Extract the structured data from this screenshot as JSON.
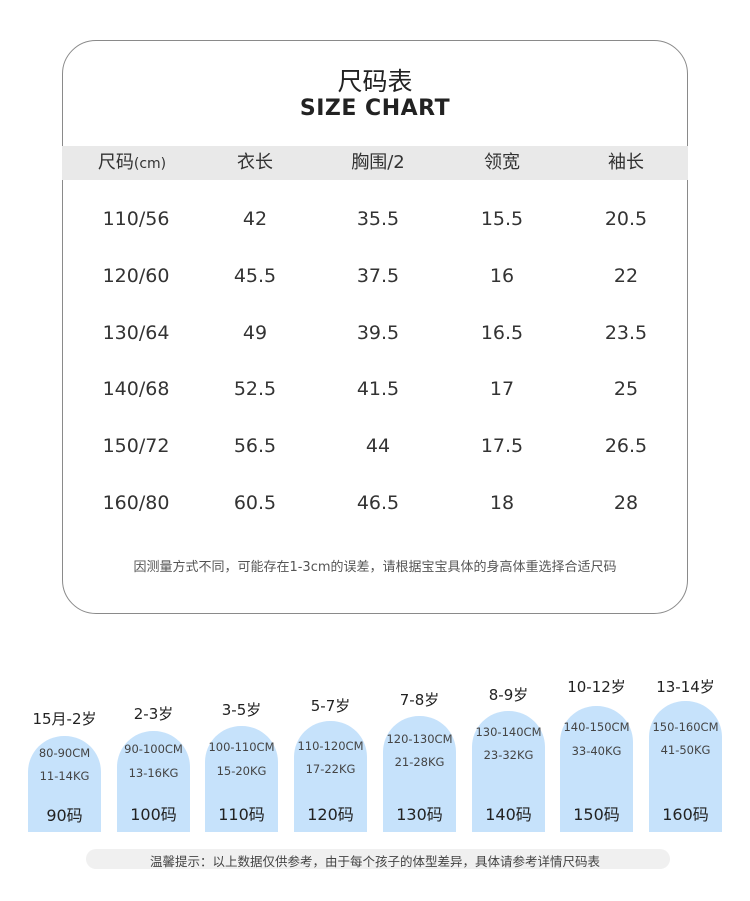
{
  "title": {
    "cn": "尺码表",
    "en": "SIZE CHART"
  },
  "table": {
    "headers": [
      "尺码",
      "衣长",
      "胸围/2",
      "领宽",
      "袖长"
    ],
    "size_unit": "(cm)",
    "rows": [
      [
        "110/56",
        "42",
        "35.5",
        "15.5",
        "20.5"
      ],
      [
        "120/60",
        "45.5",
        "37.5",
        "16",
        "22"
      ],
      [
        "130/64",
        "49",
        "39.5",
        "16.5",
        "23.5"
      ],
      [
        "140/68",
        "52.5",
        "41.5",
        "17",
        "25"
      ],
      [
        "150/72",
        "56.5",
        "44",
        "17.5",
        "26.5"
      ],
      [
        "160/80",
        "60.5",
        "46.5",
        "18",
        "28"
      ]
    ]
  },
  "note": "因测量方式不同，可能存在1-3cm的误差，请根据宝宝具体的身高体重选择合适尺码",
  "sizes": [
    {
      "age": "15月-2岁",
      "height": "80-90CM",
      "weight": "11-14KG",
      "code": "90码"
    },
    {
      "age": "2-3岁",
      "height": "90-100CM",
      "weight": "13-16KG",
      "code": "100码"
    },
    {
      "age": "3-5岁",
      "height": "100-110CM",
      "weight": "15-20KG",
      "code": "110码"
    },
    {
      "age": "5-7岁",
      "height": "110-120CM",
      "weight": "17-22KG",
      "code": "120码"
    },
    {
      "age": "7-8岁",
      "height": "120-130CM",
      "weight": "21-28KG",
      "code": "130码"
    },
    {
      "age": "8-9岁",
      "height": "130-140CM",
      "weight": "23-32KG",
      "code": "140码"
    },
    {
      "age": "10-12岁",
      "height": "140-150CM",
      "weight": "33-40KG",
      "code": "150码"
    },
    {
      "age": "13-14岁",
      "height": "150-160CM",
      "weight": "41-50KG",
      "code": "160码"
    }
  ],
  "footer": "温馨提示：以上数据仅供参考，由于每个孩子的体型差异，具体请参考详情尺码表",
  "colors": {
    "pill": "#c6e2fb",
    "header_band": "#e9e9e9",
    "card_border": "#8a8a8a"
  }
}
